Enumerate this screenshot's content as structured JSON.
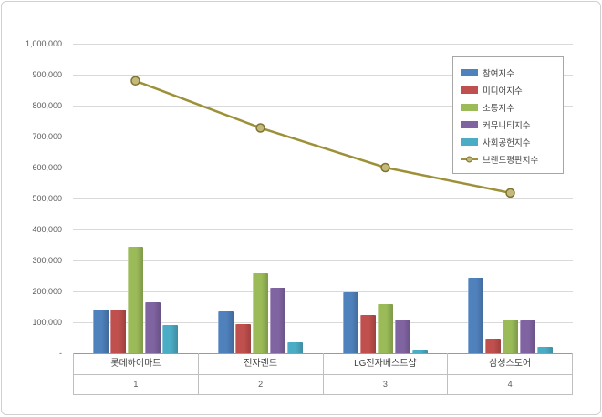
{
  "chart": {
    "background": "#ffffff",
    "frame_border": "#d0d0d0",
    "gridline_color": "#d9d9d9",
    "axis_label_color": "#595959"
  },
  "chart_data": {
    "type": "bar",
    "title": "",
    "xlabel": "",
    "ylabel": "",
    "categories": [
      "롯데하이마트",
      "전자랜드",
      "LG전자베스트샵",
      "삼성스토어"
    ],
    "category_numbers": [
      "1",
      "2",
      "3",
      "4"
    ],
    "series": [
      {
        "name": "참여지수",
        "type": "bar",
        "color": "#4F81BD",
        "values": [
          140000,
          135000,
          197000,
          243000
        ]
      },
      {
        "name": "미디어지수",
        "type": "bar",
        "color": "#C0504D",
        "values": [
          140000,
          95000,
          125000,
          48000
        ]
      },
      {
        "name": "소통지수",
        "type": "bar",
        "color": "#9BBB59",
        "values": [
          345000,
          258000,
          158000,
          108000
        ]
      },
      {
        "name": "커뮤니티지수",
        "type": "bar",
        "color": "#8064A2",
        "values": [
          165000,
          212000,
          110000,
          106000
        ]
      },
      {
        "name": "사회공헌지수",
        "type": "bar",
        "color": "#4BACC6",
        "values": [
          90000,
          35000,
          13000,
          20000
        ]
      },
      {
        "name": "브랜드평판지수",
        "type": "line",
        "color": "#9C9139",
        "values": [
          880000,
          728000,
          600000,
          518000
        ]
      }
    ],
    "ylim": [
      0,
      1000000
    ],
    "ytick_step": 100000,
    "ytick_labels": [
      "-",
      "100,000",
      "200,000",
      "300,000",
      "400,000",
      "500,000",
      "600,000",
      "700,000",
      "800,000",
      "900,000",
      "1,000,000"
    ],
    "grid": true,
    "legend_position": "top-right"
  }
}
